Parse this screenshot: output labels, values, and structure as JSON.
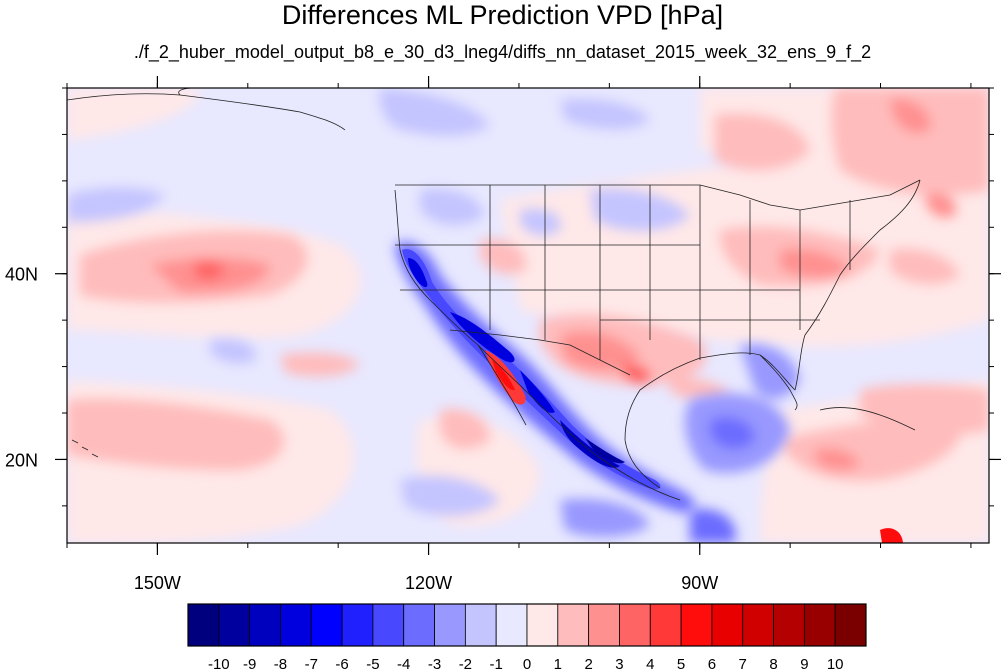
{
  "title": "Differences ML Prediction VPD [hPa]",
  "subtitle": "./f_2_huber_model_output_b8_e_30_d3_lneg4/diffs_nn_dataset_2015_week_32_ens_9_f_2",
  "map": {
    "lon_range": [
      -160,
      -58
    ],
    "lat_range": [
      11,
      60
    ],
    "x_ticks": [
      {
        "lon": -150,
        "label": "150W"
      },
      {
        "lon": -120,
        "label": "120W"
      },
      {
        "lon": -90,
        "label": "90W"
      }
    ],
    "y_ticks": [
      {
        "lat": 40,
        "label": "40N"
      },
      {
        "lat": 20,
        "label": "20N"
      }
    ]
  },
  "colorbar": {
    "levels": [
      "-10",
      "-9",
      "-8",
      "-7",
      "-6",
      "-5",
      "-4",
      "-3",
      "-2",
      "-1",
      "0",
      "1",
      "2",
      "3",
      "4",
      "5",
      "6",
      "7",
      "8",
      "9",
      "10"
    ],
    "colors": [
      "#00007f",
      "#00009f",
      "#0000bf",
      "#0000df",
      "#0000ff",
      "#2020ff",
      "#4848ff",
      "#6c6cff",
      "#9898ff",
      "#c4c4ff",
      "#e8e8ff",
      "#ffe8e8",
      "#ffbcbc",
      "#ff9090",
      "#ff6464",
      "#ff3838",
      "#ff0c0c",
      "#e80000",
      "#d00000",
      "#b40000",
      "#980000",
      "#7a0000"
    ]
  }
}
